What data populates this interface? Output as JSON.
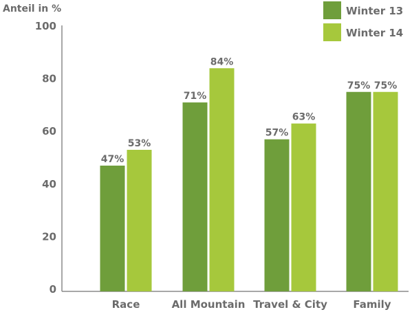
{
  "chart_data": {
    "type": "bar",
    "ylabel": "Anteil in %",
    "ylim": [
      0,
      100
    ],
    "yticks": [
      0,
      20,
      40,
      60,
      80,
      100
    ],
    "categories": [
      "Race",
      "All Mountain",
      "Travel & City",
      "Family"
    ],
    "series": [
      {
        "name": "Winter 13",
        "color": "#6f9e3b",
        "values": [
          47,
          71,
          57,
          75
        ],
        "labels": [
          "47%",
          "71%",
          "57%",
          "75%"
        ]
      },
      {
        "name": "Winter 14",
        "color": "#a6c83c",
        "values": [
          53,
          84,
          63,
          75
        ],
        "labels": [
          "53%",
          "84%",
          "63%",
          "75%"
        ]
      }
    ],
    "legend": "top-right",
    "grid": false
  }
}
